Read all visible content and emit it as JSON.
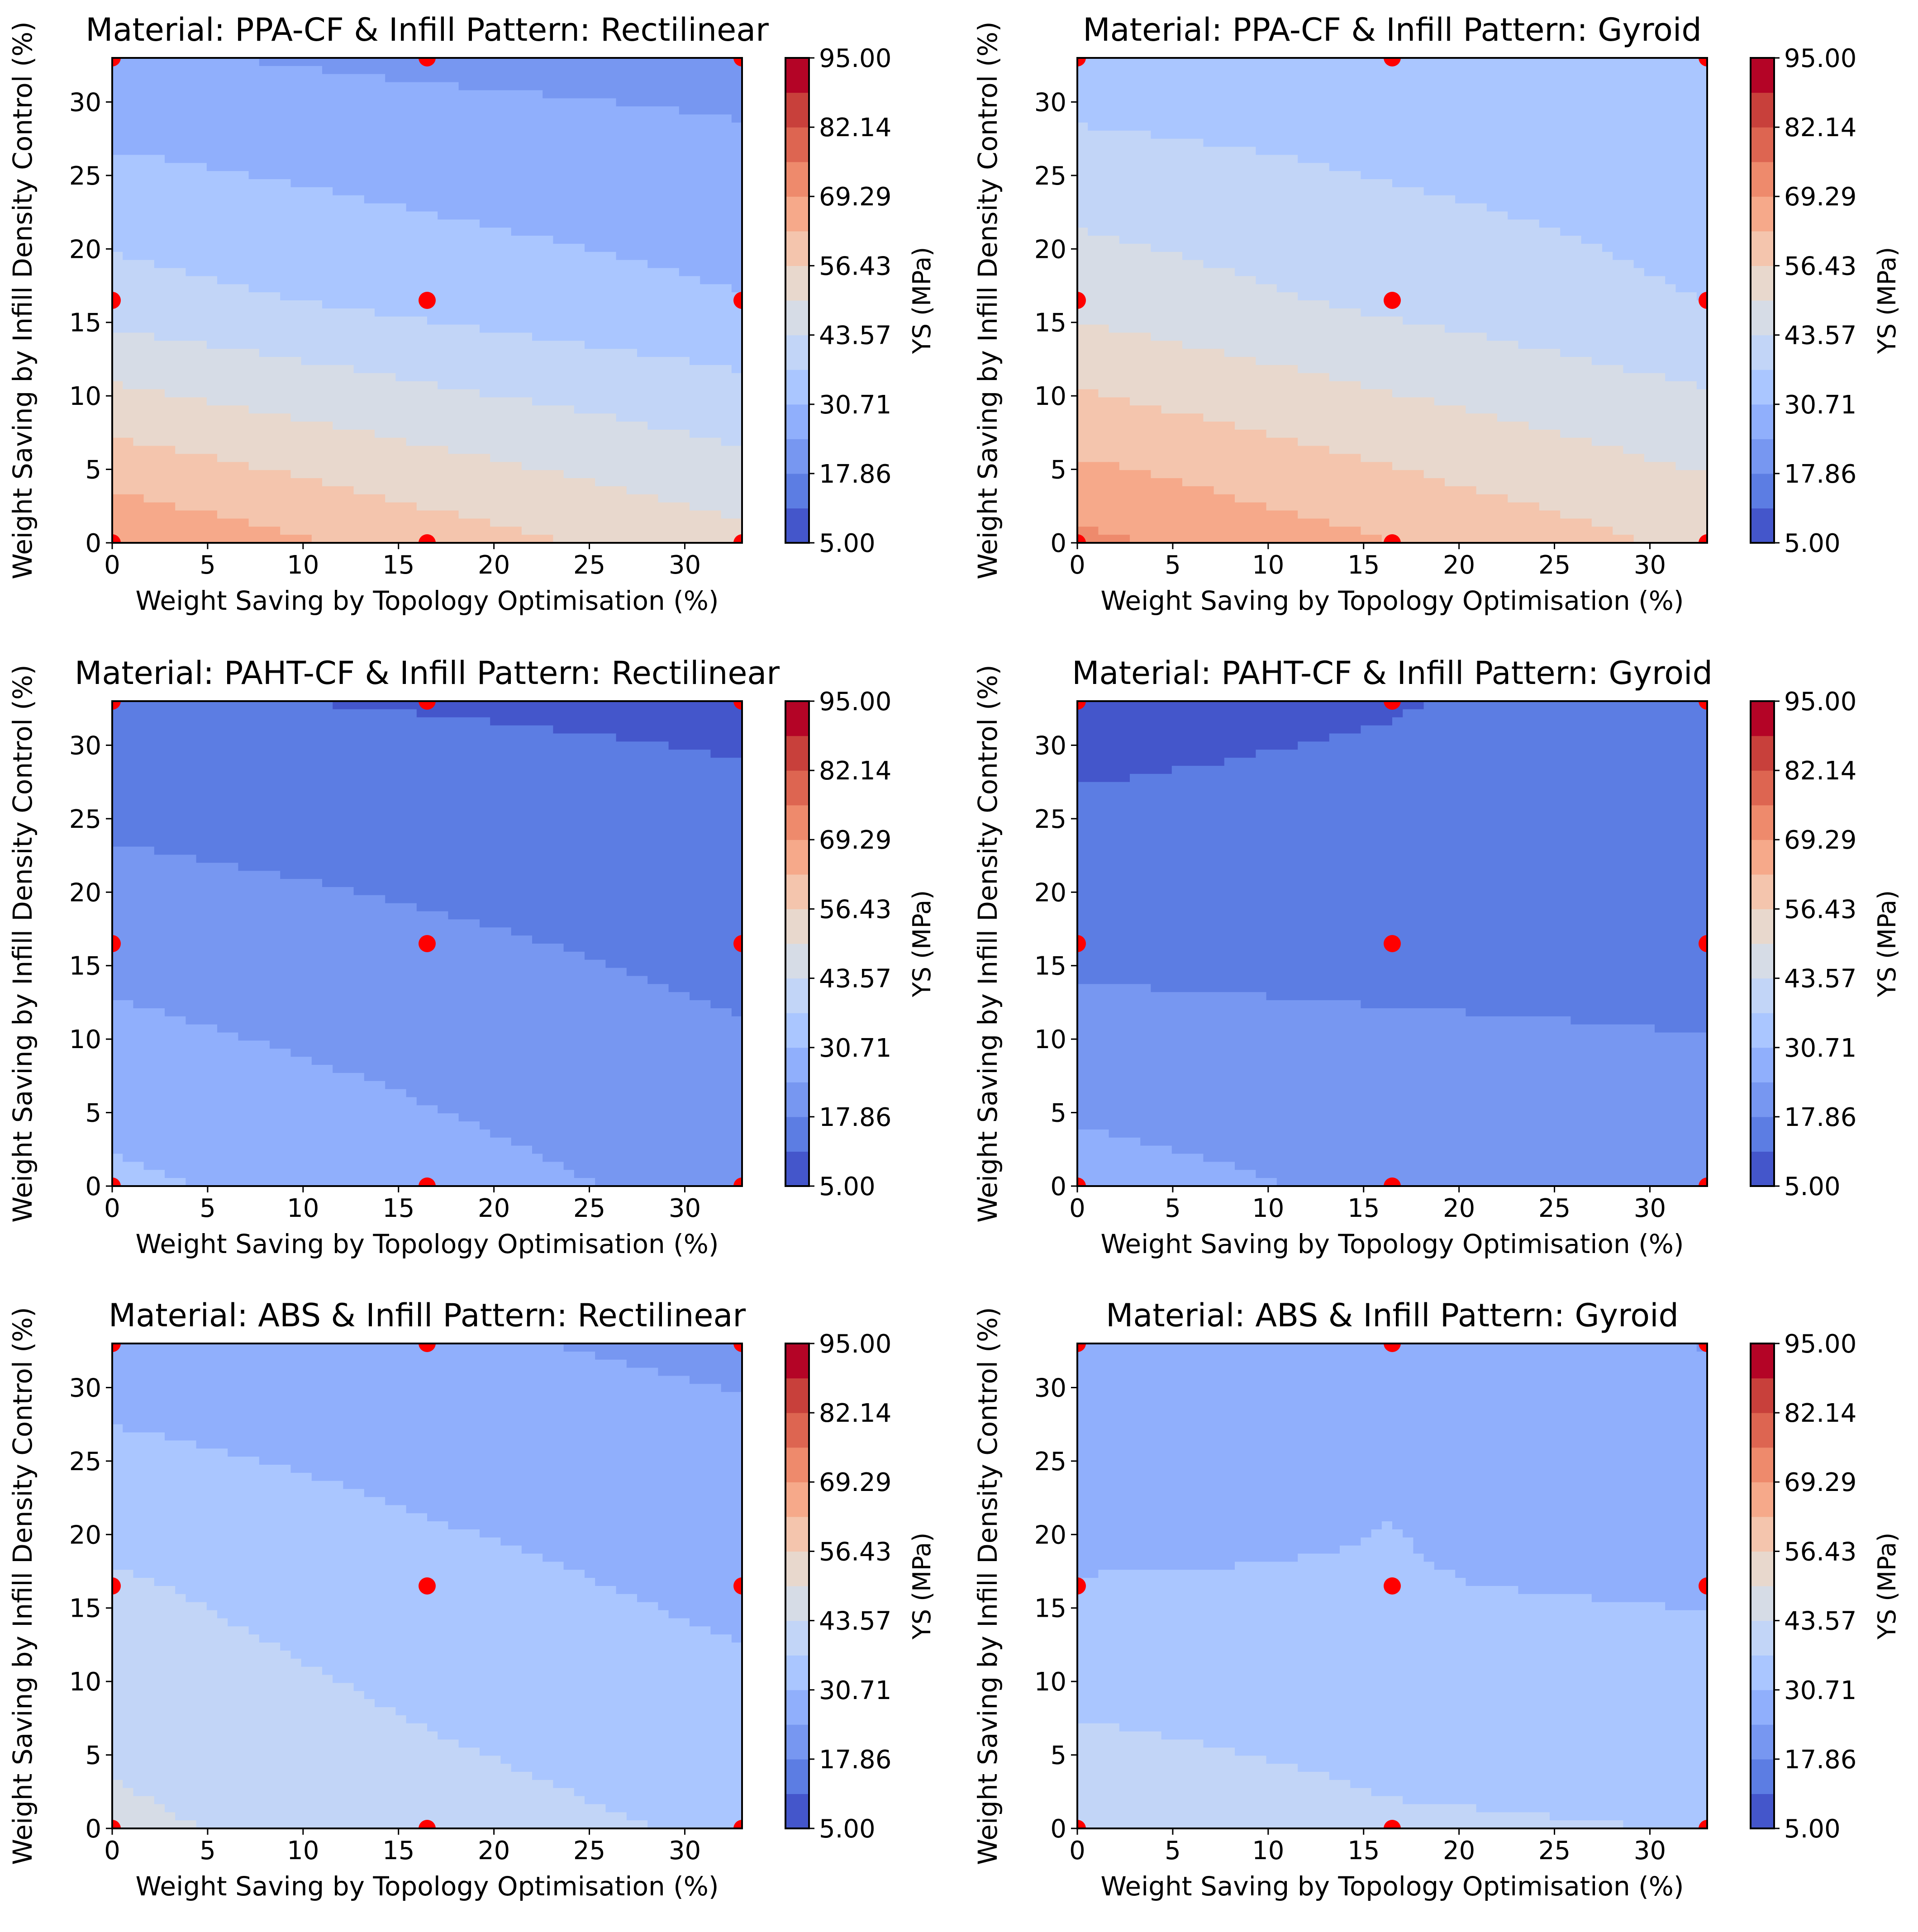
{
  "figure": {
    "colorbar_label": "YS (MPa)"
  },
  "colorbar": {
    "ticks": [
      "5.00",
      "17.86",
      "30.71",
      "43.57",
      "56.43",
      "69.29",
      "82.14",
      "95.00"
    ],
    "range": [
      5,
      95
    ],
    "levels": 14,
    "colors": [
      "#4456cb",
      "#5c7de3",
      "#7797f1",
      "#90affc",
      "#aac6ff",
      "#c2d5f7",
      "#d6dce6",
      "#e8d8cd",
      "#f4c5ad",
      "#f6a98a",
      "#ee8a6c",
      "#dd6551",
      "#c8403b",
      "#b40426"
    ]
  },
  "chart_data": [
    {
      "type": "contour",
      "title": "Material: PPA-CF & Infill Pattern: Rectilinear",
      "xlabel": "Weight Saving by Topology Optimisation (%)",
      "ylabel": "Weight Saving by Infill Density Control (%)",
      "xlim": [
        0,
        33
      ],
      "ylim": [
        0,
        33
      ],
      "xticks": [
        "0",
        "5",
        "10",
        "15",
        "20",
        "25",
        "30"
      ],
      "yticks": [
        "0",
        "5",
        "10",
        "15",
        "20",
        "25",
        "30"
      ],
      "sample_points_x": [
        0,
        16.5,
        33
      ],
      "sample_points_y": [
        0,
        16.5,
        33
      ],
      "ys_estimated": [
        [
          69,
          60,
          52
        ],
        [
          40,
          35,
          31
        ],
        [
          25,
          23,
          22
        ]
      ],
      "point_color": "#ff0000"
    },
    {
      "type": "contour",
      "title": "Material: PPA-CF & Infill Pattern: Gyroid",
      "xlabel": "Weight Saving by Topology Optimisation (%)",
      "ylabel": "Weight Saving by Infill Density Control (%)",
      "xlim": [
        0,
        33
      ],
      "ylim": [
        0,
        33
      ],
      "xticks": [
        "0",
        "5",
        "10",
        "15",
        "20",
        "25",
        "30"
      ],
      "yticks": [
        "0",
        "5",
        "10",
        "15",
        "20",
        "25",
        "30"
      ],
      "sample_points_x": [
        0,
        16.5,
        33
      ],
      "sample_points_y": [
        0,
        16.5,
        33
      ],
      "ys_estimated": [
        [
          71,
          63,
          55
        ],
        [
          48,
          42,
          37
        ],
        [
          33,
          32,
          31
        ]
      ],
      "point_color": "#ff0000"
    },
    {
      "type": "contour",
      "title": "Material: PAHT-CF & Infill Pattern: Rectilinear",
      "xlabel": "Weight Saving by Topology Optimisation (%)",
      "ylabel": "Weight Saving by Infill Density Control (%)",
      "xlim": [
        0,
        33
      ],
      "ylim": [
        0,
        33
      ],
      "xticks": [
        "0",
        "5",
        "10",
        "15",
        "20",
        "25",
        "30"
      ],
      "yticks": [
        "0",
        "5",
        "10",
        "15",
        "20",
        "25",
        "30"
      ],
      "sample_points_x": [
        0,
        16.5,
        33
      ],
      "sample_points_y": [
        0,
        16.5,
        33
      ],
      "ys_estimated": [
        [
          32,
          27,
          22
        ],
        [
          22,
          19,
          16
        ],
        [
          12,
          11,
          10
        ]
      ],
      "point_color": "#ff0000"
    },
    {
      "type": "contour",
      "title": "Material: PAHT-CF & Infill Pattern: Gyroid",
      "xlabel": "Weight Saving by Topology Optimisation (%)",
      "ylabel": "Weight Saving by Infill Density Control (%)",
      "xlim": [
        0,
        33
      ],
      "ylim": [
        0,
        33
      ],
      "xticks": [
        "0",
        "5",
        "10",
        "15",
        "20",
        "25",
        "30"
      ],
      "yticks": [
        "0",
        "5",
        "10",
        "15",
        "20",
        "25",
        "30"
      ],
      "sample_points_x": [
        0,
        16.5,
        33
      ],
      "sample_points_y": [
        0,
        16.5,
        33
      ],
      "ys_estimated": [
        [
          27,
          23,
          21
        ],
        [
          16,
          16,
          16
        ],
        [
          9,
          11,
          15
        ]
      ],
      "point_color": "#ff0000"
    },
    {
      "type": "contour",
      "title": "Material: ABS & Infill Pattern: Rectilinear",
      "xlabel": "Weight Saving by Topology Optimisation (%)",
      "ylabel": "Weight Saving by Infill Density Control (%)",
      "xlim": [
        0,
        33
      ],
      "ylim": [
        0,
        33
      ],
      "xticks": [
        "0",
        "5",
        "10",
        "15",
        "20",
        "25",
        "30"
      ],
      "yticks": [
        "0",
        "5",
        "10",
        "15",
        "20",
        "25",
        "30"
      ],
      "sample_points_x": [
        0,
        16.5,
        33
      ],
      "sample_points_y": [
        0,
        16.5,
        33
      ],
      "ys_estimated": [
        [
          45,
          40,
          36
        ],
        [
          38,
          33,
          29
        ],
        [
          27,
          25,
          23
        ]
      ],
      "point_color": "#ff0000"
    },
    {
      "type": "contour",
      "title": "Material: ABS & Infill Pattern: Gyroid",
      "xlabel": "Weight Saving by Topology Optimisation (%)",
      "ylabel": "Weight Saving by Infill Density Control (%)",
      "xlim": [
        0,
        33
      ],
      "ylim": [
        0,
        33
      ],
      "xticks": [
        "0",
        "5",
        "10",
        "15",
        "20",
        "25",
        "30"
      ],
      "yticks": [
        "0",
        "5",
        "10",
        "15",
        "20",
        "25",
        "30"
      ],
      "sample_points_x": [
        0,
        16.5,
        33
      ],
      "sample_points_y": [
        0,
        16.5,
        33
      ],
      "ys_estimated": [
        [
          42,
          38,
          37
        ],
        [
          31,
          31,
          30
        ],
        [
          25,
          30,
          24
        ]
      ],
      "point_color": "#ff0000"
    }
  ]
}
